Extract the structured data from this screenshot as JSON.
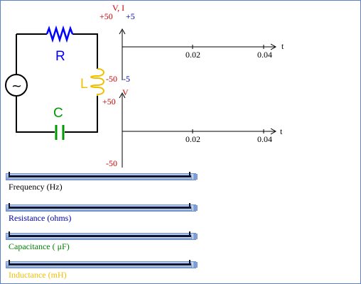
{
  "circuit": {
    "resistor_label": "R",
    "inductor_label": "L",
    "capacitor_label": "C",
    "source_symbol": "~",
    "colors": {
      "resistor": "#0000ff",
      "inductor": "#f0c000",
      "capacitor": "#009900",
      "wire": "#000000"
    }
  },
  "top_graph": {
    "axis_label": "V, I",
    "v_max": "+50",
    "i_max": "+5",
    "v_min": "-50",
    "i_min": "-5",
    "x_ticks": [
      "0.02",
      "0.04"
    ],
    "x_label": "t"
  },
  "bottom_graph": {
    "axis_label": "V",
    "v_max": "+50",
    "v_min": "-50",
    "x_ticks": [
      "0.02",
      "0.04"
    ],
    "x_label": "t"
  },
  "sliders": [
    {
      "label": "Frequency (Hz)",
      "color": "#000000"
    },
    {
      "label": "Resistance (ohms)",
      "color": "#0000aa"
    },
    {
      "label": "Capacitance ( μF)",
      "color": "#008000"
    },
    {
      "label": "Inductance (mH)",
      "color": "#f0c000"
    }
  ]
}
